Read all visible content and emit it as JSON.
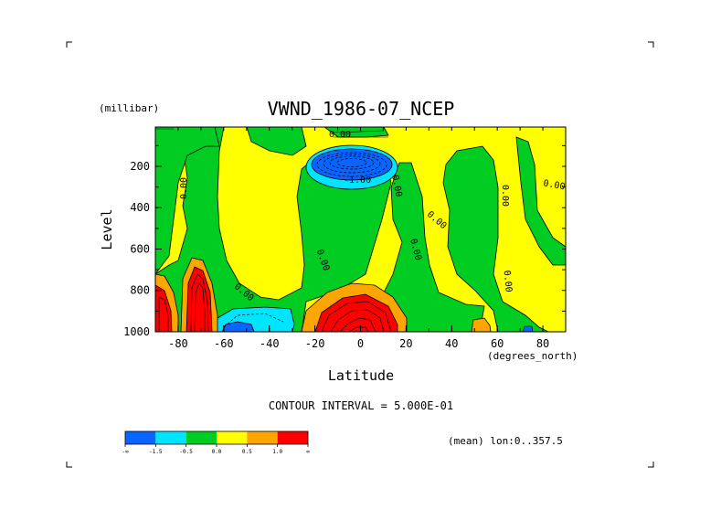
{
  "chart_data": {
    "type": "heatmap",
    "title": "VWND_1986-07_NCEP",
    "ylabel": "Level",
    "yunits": "(millibar)",
    "xlabel": "Latitude",
    "xunits": "(degrees_north)",
    "xlim": [
      -90,
      90
    ],
    "ylim": [
      1000,
      10
    ],
    "y_inverted": true,
    "x_ticks": [
      -80,
      -60,
      -40,
      -20,
      0,
      20,
      40,
      60,
      80
    ],
    "y_ticks": [
      200,
      400,
      600,
      800,
      1000
    ],
    "contour_interval_text": "CONTOUR INTERVAL = 5.000E-01",
    "footer_text": "(mean) lon:0..357.5",
    "contour_labels": [
      "0.00",
      "-1.00"
    ],
    "colorbar": {
      "bins": [
        {
          "color": "#0a64ff"
        },
        {
          "color": "#00e5ff"
        },
        {
          "color": "#00cc22"
        },
        {
          "color": "#ffff00"
        },
        {
          "color": "#ffa500"
        },
        {
          "color": "#ff0000"
        }
      ],
      "tick_labels": [
        "-∞",
        "-1.5",
        "-0.5",
        "0.0",
        "0.5",
        "1.0",
        "∞"
      ]
    },
    "features": [
      {
        "name": "upper-tropospheric negative core",
        "lat": -10,
        "level": 200,
        "value": -1.5
      },
      {
        "name": "lower-tropospheric positive jet",
        "lat": -5,
        "level": 950,
        "value": 3.0
      },
      {
        "name": "southern high-latitude positive core A",
        "lat": -87,
        "level": 900,
        "value": 2.5
      },
      {
        "name": "southern high-latitude positive core B",
        "lat": -73,
        "level": 850,
        "value": 3.0
      },
      {
        "name": "southern mid-latitude negative core",
        "lat": -50,
        "level": 975,
        "value": -1.0
      },
      {
        "name": "mid-latitude positive patch",
        "lat": 50,
        "level": 980,
        "value": 0.6
      }
    ]
  }
}
